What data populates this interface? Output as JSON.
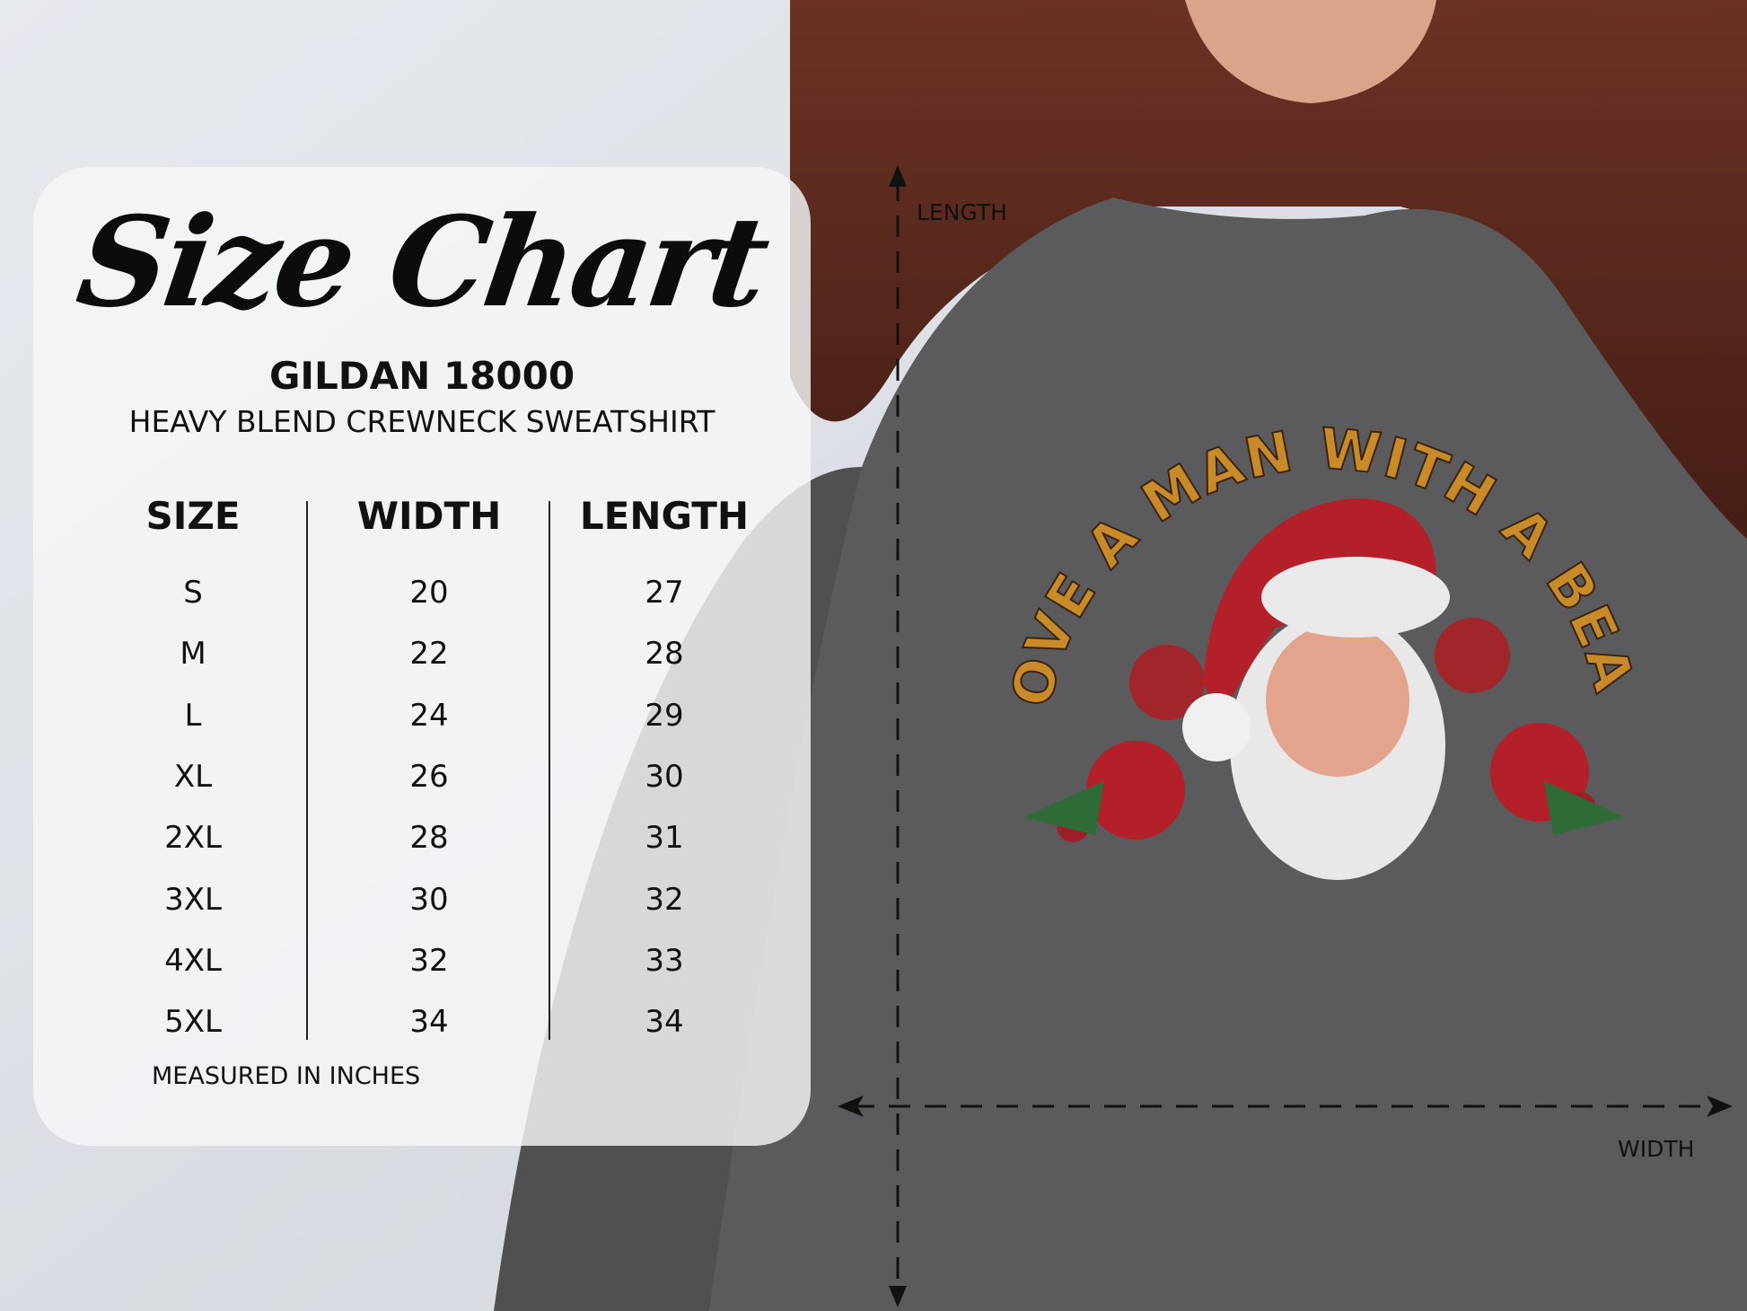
{
  "chart": {
    "title": "Size Chart",
    "model": "GILDAN 18000",
    "subtitle": "HEAVY BLEND CREWNECK SWEATSHIRT",
    "columns": [
      "SIZE",
      "WIDTH",
      "LENGTH"
    ],
    "rows": [
      [
        "S",
        "20",
        "27"
      ],
      [
        "M",
        "22",
        "28"
      ],
      [
        "L",
        "24",
        "29"
      ],
      [
        "XL",
        "26",
        "30"
      ],
      [
        "2XL",
        "28",
        "31"
      ],
      [
        "3XL",
        "30",
        "32"
      ],
      [
        "4XL",
        "32",
        "33"
      ],
      [
        "5XL",
        "34",
        "34"
      ]
    ],
    "note": "MEASURED IN INCHES"
  },
  "dimensions": {
    "length_label": "LENGTH",
    "width_label": "WIDTH"
  },
  "design": {
    "text": "I LOVE A MAN WITH A BEARD"
  },
  "colors": {
    "shirt": "#5b5b5d",
    "background": "#dfe3e8",
    "hair": "#5a2a20",
    "panel": "#f5f6f8",
    "santa_red": "#b3202a"
  }
}
